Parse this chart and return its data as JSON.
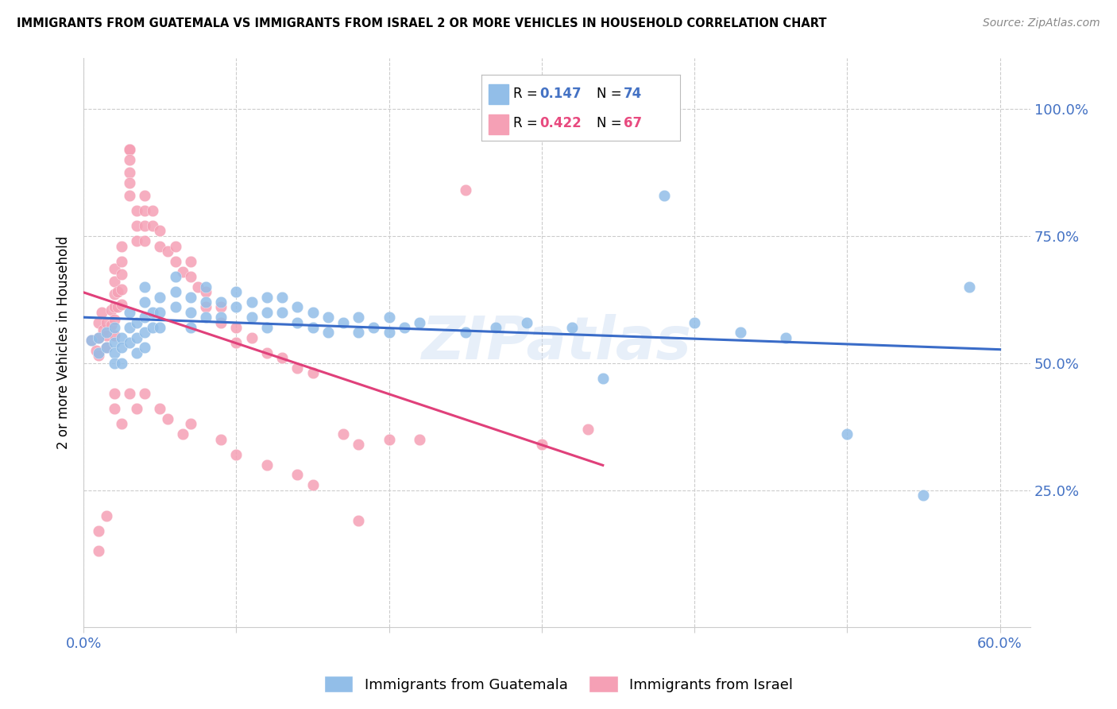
{
  "title": "IMMIGRANTS FROM GUATEMALA VS IMMIGRANTS FROM ISRAEL 2 OR MORE VEHICLES IN HOUSEHOLD CORRELATION CHART",
  "source": "Source: ZipAtlas.com",
  "ylabel": "2 or more Vehicles in Household",
  "legend_R_guatemala": "0.147",
  "legend_N_guatemala": "74",
  "legend_R_israel": "0.422",
  "legend_N_israel": "67",
  "color_guatemala": "#92BEE8",
  "color_israel": "#F5A0B5",
  "color_line_guatemala": "#3A6CC8",
  "color_line_israel": "#E0407A",
  "color_text_blue": "#4472C4",
  "color_text_pink": "#E84A7F",
  "watermark_text": "ZIPatlas",
  "xlim": [
    0.0,
    0.62
  ],
  "ylim": [
    -0.02,
    1.1
  ],
  "guat_x": [
    0.005,
    0.01,
    0.01,
    0.015,
    0.015,
    0.02,
    0.02,
    0.02,
    0.02,
    0.025,
    0.025,
    0.025,
    0.03,
    0.03,
    0.03,
    0.035,
    0.035,
    0.035,
    0.04,
    0.04,
    0.04,
    0.04,
    0.04,
    0.045,
    0.045,
    0.05,
    0.05,
    0.05,
    0.06,
    0.06,
    0.06,
    0.07,
    0.07,
    0.07,
    0.08,
    0.08,
    0.08,
    0.09,
    0.09,
    0.1,
    0.1,
    0.11,
    0.11,
    0.12,
    0.12,
    0.12,
    0.13,
    0.13,
    0.14,
    0.14,
    0.15,
    0.15,
    0.16,
    0.16,
    0.17,
    0.18,
    0.18,
    0.19,
    0.2,
    0.2,
    0.21,
    0.22,
    0.25,
    0.27,
    0.29,
    0.32,
    0.34,
    0.38,
    0.4,
    0.43,
    0.46,
    0.5,
    0.55,
    0.58
  ],
  "guat_y": [
    0.545,
    0.55,
    0.52,
    0.56,
    0.53,
    0.57,
    0.54,
    0.52,
    0.5,
    0.55,
    0.53,
    0.5,
    0.6,
    0.57,
    0.54,
    0.58,
    0.55,
    0.52,
    0.65,
    0.62,
    0.59,
    0.56,
    0.53,
    0.6,
    0.57,
    0.63,
    0.6,
    0.57,
    0.67,
    0.64,
    0.61,
    0.63,
    0.6,
    0.57,
    0.65,
    0.62,
    0.59,
    0.62,
    0.59,
    0.64,
    0.61,
    0.62,
    0.59,
    0.63,
    0.6,
    0.57,
    0.63,
    0.6,
    0.61,
    0.58,
    0.6,
    0.57,
    0.59,
    0.56,
    0.58,
    0.59,
    0.56,
    0.57,
    0.59,
    0.56,
    0.57,
    0.58,
    0.56,
    0.57,
    0.58,
    0.57,
    0.47,
    0.83,
    0.58,
    0.56,
    0.55,
    0.36,
    0.24,
    0.65
  ],
  "isr_x": [
    0.005,
    0.008,
    0.01,
    0.01,
    0.01,
    0.012,
    0.013,
    0.015,
    0.015,
    0.015,
    0.018,
    0.018,
    0.02,
    0.02,
    0.02,
    0.02,
    0.02,
    0.02,
    0.022,
    0.022,
    0.025,
    0.025,
    0.025,
    0.025,
    0.025,
    0.03,
    0.03,
    0.03,
    0.03,
    0.03,
    0.03,
    0.03,
    0.035,
    0.035,
    0.035,
    0.04,
    0.04,
    0.04,
    0.04,
    0.045,
    0.045,
    0.05,
    0.05,
    0.055,
    0.06,
    0.06,
    0.065,
    0.07,
    0.07,
    0.075,
    0.08,
    0.08,
    0.09,
    0.09,
    0.1,
    0.1,
    0.11,
    0.12,
    0.13,
    0.14,
    0.15,
    0.17,
    0.18,
    0.2,
    0.22,
    0.25,
    0.33
  ],
  "isr_y": [
    0.545,
    0.525,
    0.58,
    0.55,
    0.515,
    0.6,
    0.565,
    0.58,
    0.555,
    0.53,
    0.605,
    0.575,
    0.685,
    0.66,
    0.635,
    0.61,
    0.585,
    0.555,
    0.64,
    0.61,
    0.73,
    0.7,
    0.675,
    0.645,
    0.615,
    0.92,
    0.92,
    0.92,
    0.9,
    0.875,
    0.855,
    0.83,
    0.8,
    0.77,
    0.74,
    0.83,
    0.8,
    0.77,
    0.74,
    0.8,
    0.77,
    0.76,
    0.73,
    0.72,
    0.73,
    0.7,
    0.68,
    0.7,
    0.67,
    0.65,
    0.64,
    0.61,
    0.61,
    0.58,
    0.57,
    0.54,
    0.55,
    0.52,
    0.51,
    0.49,
    0.48,
    0.36,
    0.19,
    0.35,
    0.35,
    0.84,
    0.37
  ],
  "isr_low_x": [
    0.01,
    0.01,
    0.015,
    0.02,
    0.02,
    0.025,
    0.03,
    0.035,
    0.04,
    0.05,
    0.055,
    0.065,
    0.07,
    0.09,
    0.1,
    0.12,
    0.14,
    0.15,
    0.18,
    0.3
  ],
  "isr_low_y": [
    0.17,
    0.13,
    0.2,
    0.44,
    0.41,
    0.38,
    0.44,
    0.41,
    0.44,
    0.41,
    0.39,
    0.36,
    0.38,
    0.35,
    0.32,
    0.3,
    0.28,
    0.26,
    0.34,
    0.34
  ]
}
